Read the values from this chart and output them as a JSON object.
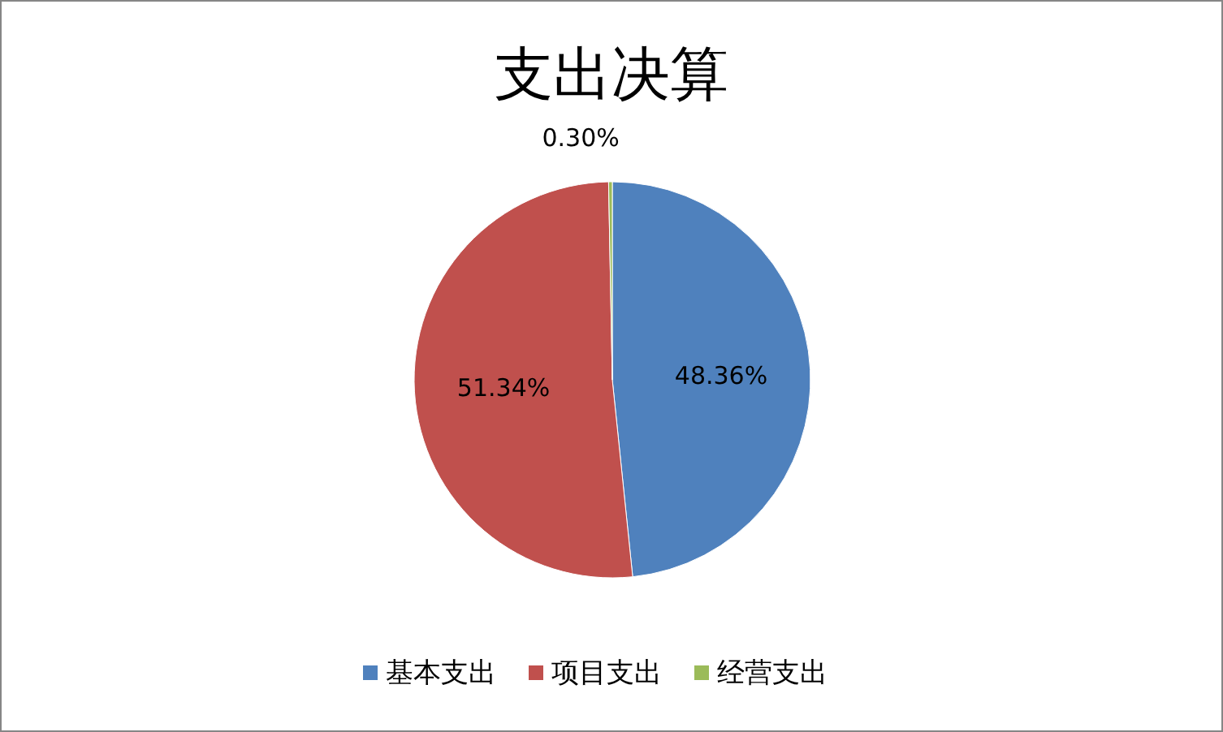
{
  "chart_data": {
    "type": "pie",
    "title": "支出决算",
    "categories": [
      "基本支出",
      "项目支出",
      "经营支出"
    ],
    "values": [
      48.36,
      51.34,
      0.3
    ],
    "colors": [
      "#4f81bd",
      "#c0504d",
      "#9bbb59"
    ],
    "value_labels": [
      "48.36%",
      "51.34%",
      "0.30%"
    ],
    "legend": "bottom"
  }
}
